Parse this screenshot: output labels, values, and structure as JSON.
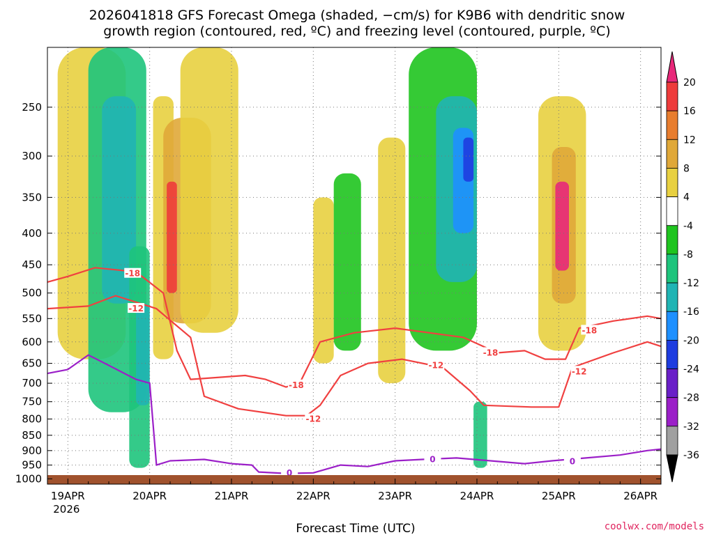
{
  "chart_data": {
    "type": "heatmap",
    "title_line1": "2026041818 GFS Forecast Omega (shaded, −cm/s) for K9B6 with dendritic snow",
    "title_line2": "growth region (contoured, red, ºC) and freezing level (contoured, purple, ºC)",
    "xlabel": "Forecast Time (UTC)",
    "ylabel": "",
    "x_ticks": [
      {
        "label": "19APR",
        "sub": "2026",
        "hour": 0
      },
      {
        "label": "20APR",
        "sub": "",
        "hour": 24
      },
      {
        "label": "21APR",
        "sub": "",
        "hour": 48
      },
      {
        "label": "22APR",
        "sub": "",
        "hour": 72
      },
      {
        "label": "23APR",
        "sub": "",
        "hour": 96
      },
      {
        "label": "24APR",
        "sub": "",
        "hour": 120
      },
      {
        "label": "25APR",
        "sub": "",
        "hour": 144
      },
      {
        "label": "26APR",
        "sub": "",
        "hour": 168
      }
    ],
    "x_range_hours": [
      -6,
      174
    ],
    "y_ticks": [
      "250",
      "300",
      "350",
      "400",
      "450",
      "500",
      "550",
      "600",
      "650",
      "700",
      "750",
      "800",
      "850",
      "900",
      "950",
      "1000"
    ],
    "y_range_hpa": [
      200,
      1020
    ],
    "colorbar": {
      "levels": [
        "20",
        "16",
        "12",
        "8",
        "4",
        "-4",
        "-8",
        "-12",
        "-16",
        "-20",
        "-24",
        "-28",
        "-32",
        "-36"
      ],
      "colors": [
        "#e8287a",
        "#ee3b3b",
        "#e87d2e",
        "#e0a838",
        "#e8d040",
        "#ffffff",
        "#1fc41f",
        "#1ec47c",
        "#20b4b4",
        "#1e90ff",
        "#1e3ce0",
        "#6a1fc8",
        "#9b1fc8",
        "#a0a0a0",
        "#000000"
      ]
    },
    "omega_regions": [
      {
        "t0": -3,
        "t1": 17,
        "p0": 200,
        "p1": 640,
        "v": 5
      },
      {
        "t0": 6,
        "t1": 23,
        "p0": 200,
        "p1": 780,
        "v": -8
      },
      {
        "t0": 10,
        "t1": 20,
        "p0": 240,
        "p1": 520,
        "v": -12
      },
      {
        "t0": 18,
        "t1": 24,
        "p0": 420,
        "p1": 960,
        "v": -8
      },
      {
        "t0": 20,
        "t1": 24,
        "p0": 520,
        "p1": 760,
        "v": -14
      },
      {
        "t0": 25,
        "t1": 31,
        "p0": 240,
        "p1": 640,
        "v": 7
      },
      {
        "t0": 28,
        "t1": 42,
        "p0": 260,
        "p1": 560,
        "v": 8
      },
      {
        "t0": 29,
        "t1": 32,
        "p0": 330,
        "p1": 500,
        "v": 18
      },
      {
        "t0": 33,
        "t1": 50,
        "p0": 200,
        "p1": 580,
        "v": 5
      },
      {
        "t0": 72,
        "t1": 78,
        "p0": 350,
        "p1": 650,
        "v": 6
      },
      {
        "t0": 78,
        "t1": 86,
        "p0": 320,
        "p1": 620,
        "v": -7
      },
      {
        "t0": 91,
        "t1": 99,
        "p0": 280,
        "p1": 700,
        "v": 7
      },
      {
        "t0": 100,
        "t1": 120,
        "p0": 200,
        "p1": 620,
        "v": -7
      },
      {
        "t0": 108,
        "t1": 120,
        "p0": 240,
        "p1": 480,
        "v": -12
      },
      {
        "t0": 113,
        "t1": 119,
        "p0": 270,
        "p1": 400,
        "v": -16
      },
      {
        "t0": 116,
        "t1": 119,
        "p0": 280,
        "p1": 330,
        "v": -22
      },
      {
        "t0": 119,
        "t1": 123,
        "p0": 750,
        "p1": 960,
        "v": -8
      },
      {
        "t0": 138,
        "t1": 152,
        "p0": 240,
        "p1": 620,
        "v": 6
      },
      {
        "t0": 142,
        "t1": 149,
        "p0": 290,
        "p1": 520,
        "v": 10
      },
      {
        "t0": 143,
        "t1": 147,
        "p0": 330,
        "p1": 460,
        "v": 20
      }
    ],
    "contours": [
      {
        "name": "dgz-minus-18",
        "label": "-18",
        "color": "#f04040",
        "points": [
          [
            -6,
            480
          ],
          [
            0,
            470
          ],
          [
            8,
            455
          ],
          [
            20,
            462
          ],
          [
            28,
            500
          ],
          [
            32,
            620
          ],
          [
            36,
            690
          ],
          [
            52,
            680
          ],
          [
            58,
            690
          ],
          [
            64,
            710
          ],
          [
            68,
            700
          ],
          [
            74,
            600
          ],
          [
            84,
            580
          ],
          [
            96,
            570
          ],
          [
            106,
            580
          ],
          [
            116,
            590
          ],
          [
            126,
            625
          ],
          [
            134,
            620
          ],
          [
            140,
            640
          ],
          [
            146,
            640
          ],
          [
            150,
            570
          ],
          [
            160,
            555
          ],
          [
            170,
            545
          ],
          [
            174,
            550
          ]
        ],
        "label_at": [
          [
            19,
            465
          ],
          [
            67,
            705
          ],
          [
            124,
            625
          ],
          [
            153,
            575
          ]
        ]
      },
      {
        "name": "dgz-minus-12",
        "label": "-12",
        "color": "#f04040",
        "points": [
          [
            -6,
            530
          ],
          [
            6,
            525
          ],
          [
            14,
            505
          ],
          [
            26,
            530
          ],
          [
            36,
            590
          ],
          [
            40,
            735
          ],
          [
            50,
            770
          ],
          [
            64,
            790
          ],
          [
            70,
            790
          ],
          [
            74,
            760
          ],
          [
            80,
            680
          ],
          [
            88,
            650
          ],
          [
            98,
            640
          ],
          [
            110,
            660
          ],
          [
            118,
            720
          ],
          [
            122,
            760
          ],
          [
            136,
            765
          ],
          [
            144,
            765
          ],
          [
            148,
            660
          ],
          [
            160,
            625
          ],
          [
            170,
            600
          ],
          [
            174,
            610
          ]
        ],
        "label_at": [
          [
            20,
            530
          ],
          [
            72,
            800
          ],
          [
            108,
            655
          ],
          [
            150,
            670
          ]
        ]
      },
      {
        "name": "freezing-level-0",
        "label": "0",
        "color": "#9b1fc8",
        "points": [
          [
            -6,
            675
          ],
          [
            0,
            665
          ],
          [
            6,
            630
          ],
          [
            12,
            655
          ],
          [
            20,
            690
          ],
          [
            24,
            700
          ],
          [
            26,
            950
          ],
          [
            30,
            935
          ],
          [
            40,
            930
          ],
          [
            48,
            945
          ],
          [
            54,
            950
          ],
          [
            56,
            975
          ],
          [
            64,
            980
          ],
          [
            72,
            978
          ],
          [
            80,
            950
          ],
          [
            88,
            955
          ],
          [
            96,
            935
          ],
          [
            104,
            930
          ],
          [
            114,
            925
          ],
          [
            124,
            935
          ],
          [
            134,
            945
          ],
          [
            142,
            935
          ],
          [
            152,
            925
          ],
          [
            162,
            915
          ],
          [
            170,
            900
          ],
          [
            174,
            895
          ]
        ],
        "label_at": [
          [
            65,
            978
          ],
          [
            107,
            930
          ],
          [
            148,
            938
          ]
        ]
      }
    ]
  },
  "credit": "coolwx.com/models"
}
